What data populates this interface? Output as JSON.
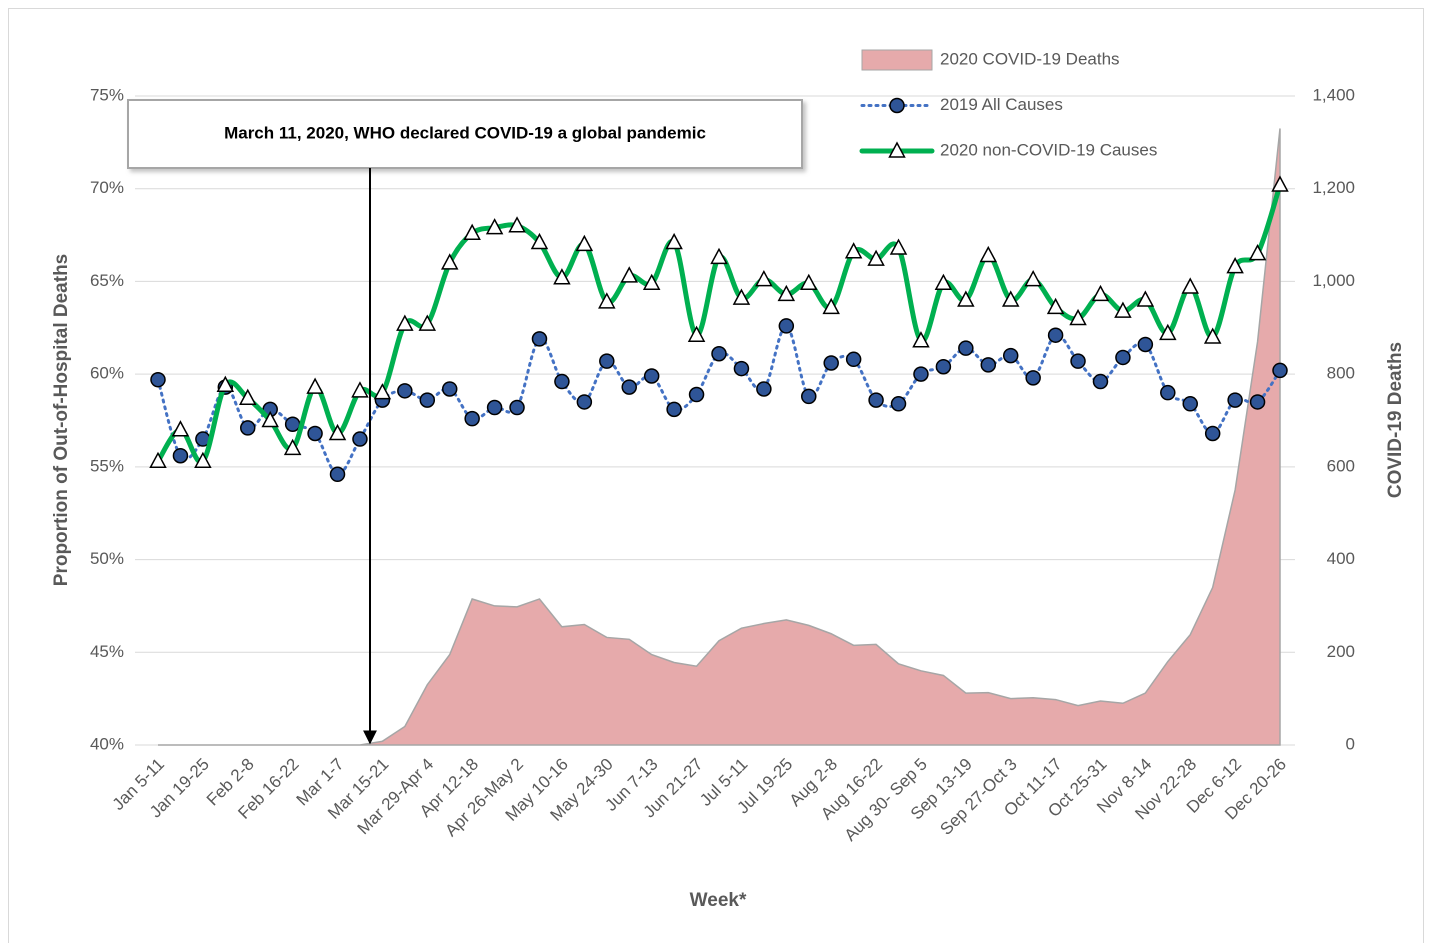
{
  "chart_data": {
    "type": "combo",
    "annotation": "March 11, 2020, WHO declared COVID-19 a global pandemic",
    "xlabel": "Week*",
    "ylabel": "Proportion of Out-of-Hospital Deaths",
    "y2label": "COVID-19 Deaths",
    "categories": [
      "Jan 5-11",
      null,
      "Jan 19-25",
      null,
      "Feb 2-8",
      null,
      "Feb 16-22",
      null,
      "Mar 1-7",
      null,
      "Mar 15-21",
      null,
      "Mar 29-Apr 4",
      null,
      "Apr 12-18",
      null,
      "Apr 26-May 2",
      null,
      "May 10-16",
      null,
      "May 24-30",
      null,
      "Jun 7-13",
      null,
      "Jun 21-27",
      null,
      "Jul 5-11",
      null,
      "Jul 19-25",
      null,
      "Aug 2-8",
      null,
      "Aug 16-22",
      null,
      "Aug 30- Sep 5",
      null,
      "Sep 13-19",
      null,
      "Sep 27-Oct 3",
      null,
      "Oct 11-17",
      null,
      "Oct 25-31",
      null,
      "Nov 8-14",
      null,
      "Nov 22-28",
      null,
      "Dec 6-12",
      null,
      "Dec 20-26"
    ],
    "series": [
      {
        "name": "2020 COVID-19 Deaths",
        "type": "area",
        "axis": "y2",
        "color": "#e6aaab",
        "values": [
          0,
          0,
          0,
          0,
          0,
          0,
          0,
          0,
          0,
          0,
          8,
          40,
          130,
          195,
          315,
          300,
          298,
          315,
          255,
          260,
          232,
          228,
          195,
          178,
          170,
          225,
          252,
          262,
          270,
          258,
          240,
          215,
          217,
          175,
          160,
          150,
          112,
          113,
          100,
          102,
          98,
          85,
          95,
          90,
          112,
          180,
          238,
          340,
          550,
          870,
          1330
        ]
      },
      {
        "name": "2019 All Causes",
        "type": "line",
        "color": "#4472c4",
        "values": [
          59.7,
          55.6,
          56.5,
          59.3,
          57.1,
          58.1,
          57.3,
          56.8,
          54.6,
          56.5,
          58.6,
          59.1,
          58.6,
          59.2,
          57.6,
          58.2,
          58.2,
          61.9,
          59.6,
          58.5,
          60.7,
          59.3,
          59.9,
          58.1,
          58.9,
          61.1,
          60.3,
          59.2,
          62.6,
          58.8,
          60.6,
          60.8,
          58.6,
          58.4,
          60.0,
          60.4,
          61.4,
          60.5,
          61.0,
          59.8,
          62.1,
          60.7,
          59.6,
          60.9,
          61.6,
          59.0,
          58.4,
          56.8,
          58.6,
          58.5,
          60.2
        ]
      },
      {
        "name": "2020 non-COVID-19 Causes",
        "type": "line",
        "color": "#00b050",
        "values": [
          55.3,
          57.0,
          55.3,
          59.4,
          58.7,
          57.5,
          56.0,
          59.3,
          56.8,
          59.1,
          59.0,
          62.7,
          62.7,
          66.0,
          67.6,
          67.9,
          68.0,
          67.1,
          65.2,
          67.0,
          63.9,
          65.3,
          64.9,
          67.1,
          62.1,
          66.3,
          64.1,
          65.1,
          64.3,
          64.9,
          63.6,
          66.6,
          66.2,
          66.8,
          61.8,
          64.9,
          64.0,
          66.4,
          64.0,
          65.1,
          63.6,
          63.0,
          64.3,
          63.4,
          64.0,
          62.2,
          64.7,
          62.0,
          65.8,
          66.5,
          70.2
        ]
      }
    ],
    "ylim": [
      40,
      75
    ],
    "yticks": [
      {
        "value": 40,
        "label": "40%"
      },
      {
        "value": 45,
        "label": "45%"
      },
      {
        "value": 50,
        "label": "50%"
      },
      {
        "value": 55,
        "label": "55%"
      },
      {
        "value": 60,
        "label": "60%"
      },
      {
        "value": 65,
        "label": "65%"
      },
      {
        "value": 70,
        "label": "70%"
      },
      {
        "value": 75,
        "label": "75%"
      }
    ],
    "y2lim": [
      0,
      1400
    ],
    "y2ticks": [
      0,
      200,
      400,
      600,
      800,
      {
        "value": 1000,
        "label": "1,000"
      },
      {
        "value": 1200,
        "label": "1,200"
      },
      {
        "value": 1400,
        "label": "1,400"
      }
    ],
    "grid": true
  }
}
